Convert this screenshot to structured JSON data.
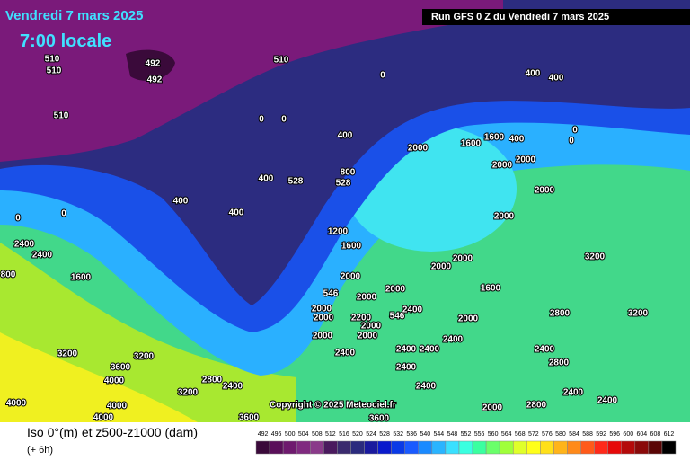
{
  "header": {
    "date": "Vendredi 7 mars 2025",
    "time": "7:00 locale",
    "run": "Run GFS 0 Z du Vendredi 7 mars 2025"
  },
  "copyright": "Copyright © 2025 Meteociel.fr",
  "footer": {
    "title": "Iso 0°(m) et z500-z1000 (dam)",
    "subtitle": "(+ 6h)"
  },
  "legend": {
    "labels": [
      "492",
      "496",
      "500",
      "504",
      "508",
      "512",
      "516",
      "520",
      "524",
      "528",
      "532",
      "536",
      "540",
      "544",
      "548",
      "552",
      "556",
      "560",
      "564",
      "568",
      "572",
      "576",
      "580",
      "584",
      "588",
      "592",
      "596",
      "600",
      "604",
      "608",
      "612"
    ],
    "colors": [
      "#3a0a3a",
      "#5a0f5a",
      "#6e1a6e",
      "#802a80",
      "#8a3a8a",
      "#4a1a5e",
      "#3a2a6e",
      "#2b2b7e",
      "#1a1a9e",
      "#0a1acc",
      "#0a3ae6",
      "#1a5aff",
      "#1a8aff",
      "#2ab4ff",
      "#3ae0ff",
      "#3affe0",
      "#3affa0",
      "#6aff6a",
      "#a0ff3a",
      "#e0ff2a",
      "#ffff1a",
      "#ffe01a",
      "#ffb41a",
      "#ff8a1a",
      "#ff5a1a",
      "#ff2a1a",
      "#e60a0a",
      "#b40a0a",
      "#8a0a0a",
      "#5a0505",
      "#000000"
    ]
  },
  "map_labels": [
    "510",
    "510",
    "510",
    "510",
    "492",
    "492",
    "0",
    "400",
    "400",
    "0",
    "0",
    "400",
    "2000",
    "1600",
    "1600",
    "400",
    "0",
    "0",
    "400",
    "800",
    "528",
    "528",
    "400",
    "400",
    "0",
    "0",
    "2000",
    "2000",
    "2000",
    "2000",
    "1200",
    "1600",
    "2400",
    "2400",
    "3200",
    "800",
    "1600",
    "2000",
    "2000",
    "1600",
    "2000",
    "2000",
    "2000",
    "546",
    "2000",
    "2000",
    "2200",
    "546",
    "2400",
    "2000",
    "2000",
    "2800",
    "3200",
    "2000",
    "2000",
    "2400",
    "2400",
    "2400",
    "2400",
    "3200",
    "3200",
    "3600",
    "2400",
    "2800",
    "2400",
    "4000",
    "4000",
    "4000",
    "2800",
    "2400",
    "3200",
    "2400",
    "2400",
    "2400",
    "2000",
    "2800",
    "4000",
    "3600",
    "3600"
  ]
}
